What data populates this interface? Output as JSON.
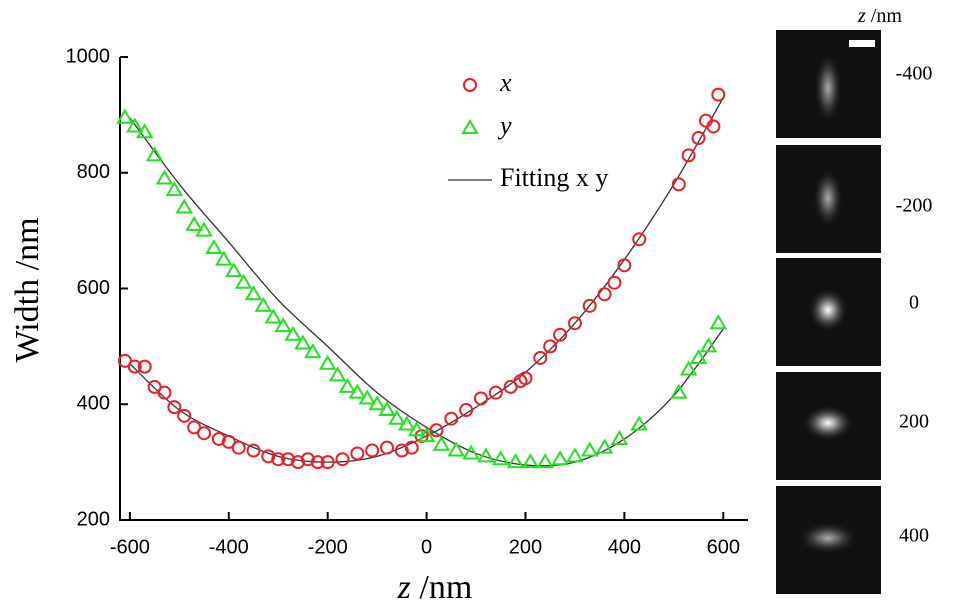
{
  "chart_data": {
    "type": "scatter",
    "x_label": {
      "var": "z",
      "unit": "/nm"
    },
    "y_label": "Width /nm",
    "xlim": [
      -620,
      650
    ],
    "ylim": [
      200,
      1000
    ],
    "xticks": [
      -600,
      -400,
      -200,
      0,
      200,
      400,
      600
    ],
    "yticks": [
      200,
      400,
      600,
      800,
      1000
    ],
    "series": [
      {
        "name": "x",
        "marker": "circle",
        "color": "#e8202a",
        "x": [
          -610,
          -590,
          -570,
          -550,
          -530,
          -510,
          -490,
          -470,
          -450,
          -420,
          -400,
          -380,
          -350,
          -320,
          -300,
          -280,
          -260,
          -240,
          -220,
          -200,
          -170,
          -140,
          -110,
          -80,
          -50,
          -30,
          -10,
          20,
          50,
          80,
          110,
          140,
          170,
          190,
          200,
          230,
          250,
          270,
          300,
          330,
          360,
          380,
          400,
          430,
          510,
          530,
          550,
          565,
          580,
          590
        ],
        "values": [
          475,
          465,
          465,
          430,
          420,
          395,
          380,
          360,
          350,
          340,
          335,
          325,
          320,
          310,
          305,
          305,
          300,
          305,
          300,
          300,
          305,
          315,
          320,
          325,
          320,
          325,
          345,
          355,
          375,
          390,
          410,
          420,
          430,
          440,
          445,
          480,
          500,
          520,
          540,
          570,
          590,
          610,
          640,
          685,
          780,
          830,
          860,
          890,
          880,
          935
        ]
      },
      {
        "name": "y",
        "marker": "triangle",
        "color": "#22e022",
        "x": [
          -610,
          -590,
          -570,
          -550,
          -530,
          -510,
          -490,
          -470,
          -450,
          -430,
          -410,
          -390,
          -370,
          -350,
          -330,
          -310,
          -290,
          -270,
          -250,
          -230,
          -200,
          -180,
          -160,
          -140,
          -120,
          -100,
          -80,
          -60,
          -40,
          -20,
          0,
          30,
          60,
          90,
          120,
          150,
          180,
          210,
          240,
          270,
          300,
          330,
          360,
          390,
          430,
          510,
          530,
          550,
          570,
          590
        ],
        "values": [
          895,
          880,
          870,
          830,
          790,
          770,
          740,
          710,
          700,
          670,
          650,
          630,
          610,
          590,
          570,
          550,
          535,
          520,
          505,
          490,
          470,
          450,
          430,
          420,
          410,
          400,
          390,
          375,
          365,
          355,
          345,
          330,
          320,
          315,
          310,
          305,
          300,
          300,
          300,
          305,
          310,
          320,
          325,
          340,
          365,
          420,
          460,
          480,
          500,
          540
        ]
      }
    ],
    "fit": {
      "name": "Fitting x y",
      "color": "#333333",
      "x": [
        -600,
        -500,
        -400,
        -300,
        -200,
        -100,
        0,
        100,
        200,
        300,
        400,
        500,
        600
      ],
      "curves": [
        [
          470,
          390,
          345,
          310,
          300,
          310,
          345,
          395,
          455,
          540,
          650,
          780,
          930
        ],
        [
          895,
          780,
          680,
          580,
          500,
          420,
          360,
          315,
          295,
          300,
          340,
          415,
          530
        ]
      ]
    }
  },
  "psf_panels": {
    "header": {
      "var": "z",
      "unit": "/nm"
    },
    "labels": [
      "-400",
      "-200",
      "0",
      "200",
      "400"
    ]
  }
}
